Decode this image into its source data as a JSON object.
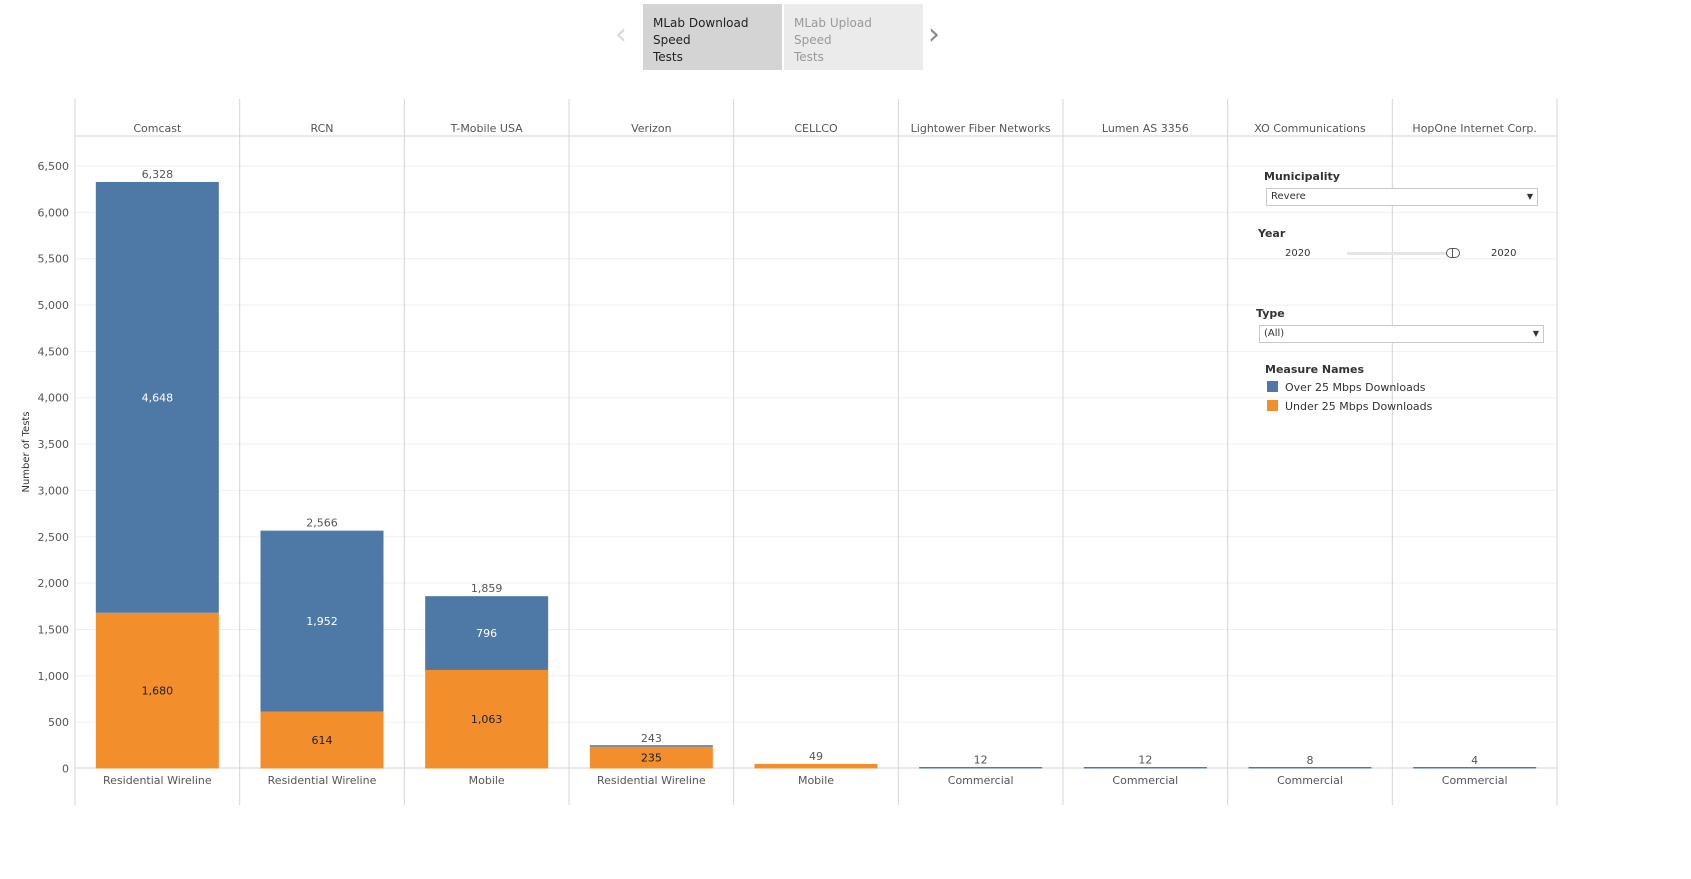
{
  "tabs": {
    "active_label_line1": "MLab Download Speed",
    "active_label_line2": "Tests",
    "inactive_label_line1": "MLab Upload Speed",
    "inactive_label_line2": "Tests",
    "prev_icon": "chevron-left-icon",
    "next_icon": "chevron-right-icon"
  },
  "filters": {
    "municipality": {
      "title": "Municipality",
      "value": "Revere"
    },
    "year": {
      "title": "Year",
      "min_label": "2020",
      "max_label": "2020"
    },
    "type": {
      "title": "Type",
      "value": "(All)"
    }
  },
  "legend": {
    "title": "Measure Names",
    "items": [
      {
        "label": "Over 25 Mbps Downloads",
        "color": "#4e79a7"
      },
      {
        "label": "Under 25 Mbps Downloads",
        "color": "#f28e2b"
      }
    ]
  },
  "chart_data": {
    "type": "bar",
    "stacked": true,
    "ylabel": "Number of Tests",
    "ylim": [
      0,
      6500
    ],
    "yticks": [
      0,
      500,
      1000,
      1500,
      2000,
      2500,
      3000,
      3500,
      4000,
      4500,
      5000,
      5500,
      6000,
      6500
    ],
    "ytick_labels": [
      "0",
      "500",
      "1,000",
      "1,500",
      "2,000",
      "2,500",
      "3,000",
      "3,500",
      "4,000",
      "4,500",
      "5,000",
      "5,500",
      "6,000",
      "6,500"
    ],
    "categories": [
      "Comcast",
      "RCN",
      "T-Mobile USA",
      "Verizon",
      "CELLCO",
      "Lightower Fiber Networks",
      "Lumen AS 3356",
      "XO Communications",
      "HopOne Internet Corp."
    ],
    "subcategories": [
      "Residential Wireline",
      "Residential Wireline",
      "Mobile",
      "Residential Wireline",
      "Mobile",
      "Commercial",
      "Commercial",
      "Commercial",
      "Commercial"
    ],
    "totals": [
      6328,
      2566,
      1859,
      243,
      49,
      12,
      12,
      8,
      4
    ],
    "total_labels": [
      "6,328",
      "2,566",
      "1,859",
      "243",
      "49",
      "12",
      "12",
      "8",
      "4"
    ],
    "series": [
      {
        "name": "Under 25 Mbps Downloads",
        "color": "#f28e2b",
        "values": [
          1680,
          614,
          1063,
          235,
          49,
          0,
          0,
          0,
          0
        ],
        "labels": [
          "1,680",
          "614",
          "1,063",
          "235",
          "",
          "",
          "",
          "",
          ""
        ]
      },
      {
        "name": "Over 25 Mbps Downloads",
        "color": "#4e79a7",
        "values": [
          4648,
          1952,
          796,
          8,
          0,
          12,
          12,
          8,
          4
        ],
        "labels": [
          "4,648",
          "1,952",
          "796",
          "",
          "",
          "",
          "",
          "",
          ""
        ]
      }
    ]
  }
}
